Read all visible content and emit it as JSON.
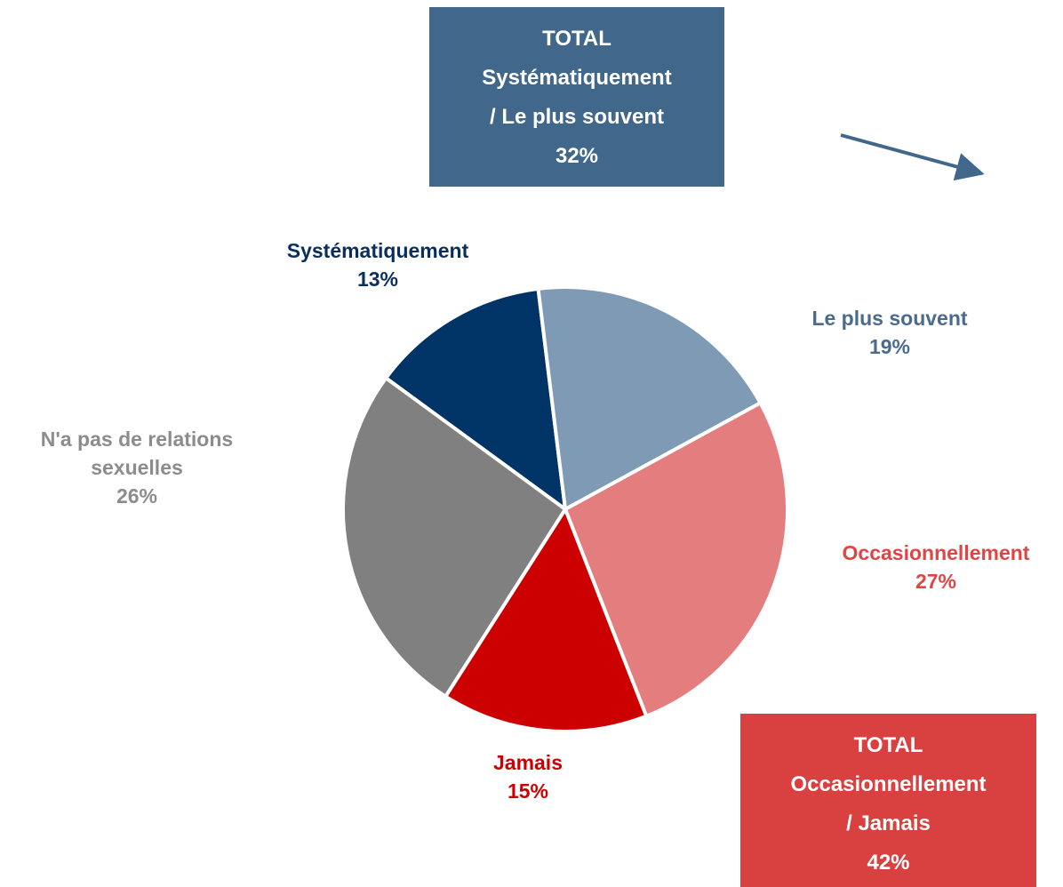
{
  "chart_data": {
    "type": "pie",
    "categories": [
      "Systématiquement",
      "Le plus souvent",
      "Occasionnellement",
      "Jamais",
      "N'a pas de relations sexuelles"
    ],
    "values": [
      13,
      19,
      27,
      15,
      26
    ],
    "value_labels": [
      "13%",
      "19%",
      "27%",
      "15%",
      "26%"
    ],
    "colors": [
      "#003366",
      "#7f9ab5",
      "#e47e7e",
      "#cc0000",
      "#808080"
    ],
    "label_colors": [
      "#0a2f5e",
      "#4a6b90",
      "#e04545",
      "#cc0000",
      "#8c8c8c"
    ],
    "annotations": [
      {
        "lines": [
          "TOTAL",
          "Systématiquement",
          "/ Le plus souvent",
          "32%"
        ],
        "color": "#41678b"
      },
      {
        "lines": [
          "TOTAL",
          "Occasionnellement",
          "/ Jamais",
          "42%"
        ],
        "color": "#d94040"
      }
    ]
  }
}
